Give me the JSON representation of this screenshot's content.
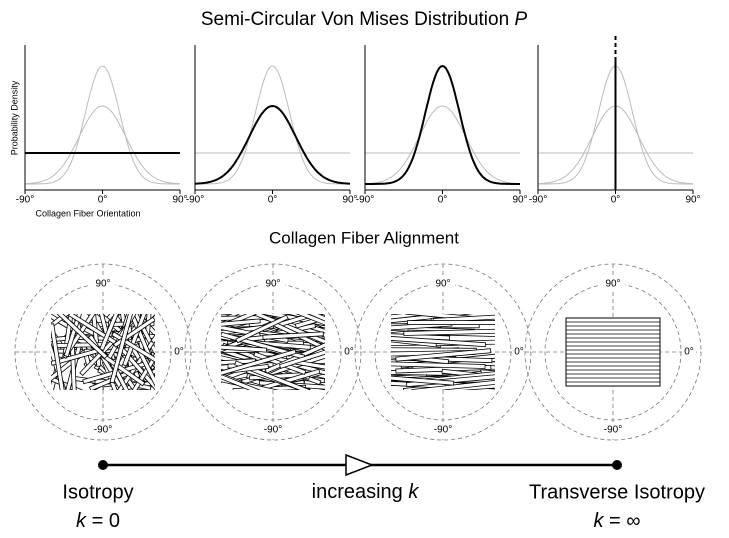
{
  "title": {
    "text": "Semi-Circular Von Mises Distribution",
    "symbol": "P"
  },
  "plots": {
    "y_label": "Probability Density",
    "x_label": "Collagen Fiber Orientation",
    "x_ticks": [
      "-90°",
      "0°",
      "90°"
    ]
  },
  "section_title": "Collagen Fiber Alignment",
  "polar_labels": {
    "top": "90°",
    "right": "0°",
    "bottom": "-90°"
  },
  "scale": {
    "left": {
      "label": "Isotropy",
      "k": "k",
      "eq": "= 0"
    },
    "middle": {
      "label": "increasing",
      "k": "k"
    },
    "right": {
      "label": "Transverse Isotropy",
      "k": "k",
      "eq": "= ∞"
    }
  }
}
